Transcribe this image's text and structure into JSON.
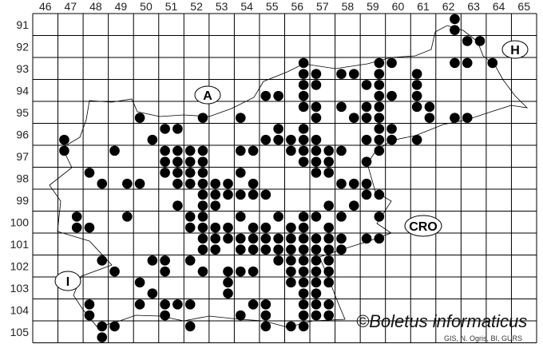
{
  "map": {
    "columns": [
      46,
      47,
      48,
      49,
      50,
      51,
      52,
      53,
      54,
      55,
      56,
      57,
      58,
      59,
      60,
      61,
      62,
      63,
      64,
      65
    ],
    "rows": [
      91,
      92,
      93,
      94,
      95,
      96,
      97,
      98,
      99,
      100,
      101,
      102,
      103,
      104,
      105
    ],
    "dot_color": "#000000",
    "labels": {
      "austria": "A",
      "hungary": "H",
      "croatia": "CRO",
      "italy": "I"
    },
    "dots_by_row": [
      [
        91.25,
        [
          62.75
        ]
      ],
      [
        91.75,
        [
          62.75
        ]
      ],
      [
        92.25,
        [
          63.25,
          63.75
        ]
      ],
      [
        93.25,
        [
          56.75,
          59.75,
          60.25,
          62.75,
          63.25,
          64.25
        ]
      ],
      [
        93.75,
        [
          56.75,
          57.25,
          58.25,
          58.75,
          59.75,
          61.25
        ]
      ],
      [
        94.25,
        [
          56.75,
          57.25,
          59.25,
          59.75,
          61.25
        ]
      ],
      [
        94.75,
        [
          55.25,
          55.75,
          56.75,
          59.75,
          60.25,
          61.25
        ]
      ],
      [
        95.25,
        [
          56.75,
          57.25,
          58.25,
          59.25,
          59.75,
          61.25,
          61.75
        ]
      ],
      [
        95.75,
        [
          50.25,
          52.75,
          54.25,
          57.25,
          58.75,
          59.25,
          59.75,
          61.75,
          62.75,
          63.25
        ]
      ],
      [
        96.25,
        [
          51.25,
          51.75,
          55.75,
          56.75,
          59.75,
          60.25
        ]
      ],
      [
        96.75,
        [
          47.25,
          50.75,
          55.25,
          55.75,
          56.25,
          56.75,
          57.25,
          59.25,
          59.75,
          60.25,
          61.25
        ]
      ],
      [
        97.25,
        [
          47.25,
          49.25,
          51.25,
          51.75,
          52.25,
          52.75,
          54.25,
          54.75,
          56.25,
          56.75,
          57.25,
          57.75,
          58.25,
          59.75
        ]
      ],
      [
        97.75,
        [
          51.25,
          51.75,
          52.25,
          52.75,
          56.75,
          57.25,
          57.75,
          59.25
        ]
      ],
      [
        98.25,
        [
          48.25,
          51.25,
          51.75,
          52.25,
          52.75,
          54.25,
          57.25,
          57.75
        ]
      ],
      [
        98.75,
        [
          48.75,
          49.75,
          50.25,
          51.75,
          52.25,
          52.75,
          53.25,
          53.75,
          54.75,
          58.25,
          58.75,
          59.25
        ]
      ],
      [
        99.25,
        [
          52.75,
          53.25,
          53.75,
          54.25,
          54.75,
          55.25,
          59.25,
          59.75
        ]
      ],
      [
        99.75,
        [
          51.75,
          52.75,
          53.25,
          57.75,
          58.75
        ]
      ],
      [
        100.25,
        [
          47.75,
          49.75,
          52.25,
          52.75,
          54.25,
          55.75,
          56.75,
          57.25,
          58.25,
          59.75
        ]
      ],
      [
        100.75,
        [
          47.75,
          48.25,
          52.25,
          52.75,
          53.25,
          53.75,
          54.75,
          55.25,
          56.25,
          56.75,
          57.75
        ]
      ],
      [
        101.25,
        [
          52.75,
          53.25,
          53.75,
          54.25,
          54.75,
          55.25,
          55.75,
          56.25,
          56.75,
          57.25,
          57.75,
          58.25,
          59.25,
          59.75
        ]
      ],
      [
        101.75,
        [
          52.75,
          53.25,
          54.25,
          54.75,
          55.25,
          55.75,
          56.25,
          56.75,
          57.25,
          57.75,
          58.25
        ]
      ],
      [
        102.25,
        [
          48.75,
          50.75,
          51.25,
          52.25,
          55.75,
          56.25,
          56.75,
          57.25,
          57.75
        ]
      ],
      [
        102.75,
        [
          49.25,
          51.25,
          52.75,
          53.75,
          54.25,
          54.75,
          56.25,
          56.75,
          57.25,
          57.75
        ]
      ],
      [
        103.25,
        [
          50.25,
          53.75,
          56.25,
          56.75,
          57.25,
          57.75
        ]
      ],
      [
        103.75,
        [
          50.75,
          53.75,
          56.75,
          57.25
        ]
      ],
      [
        104.25,
        [
          48.25,
          50.25,
          51.25,
          51.75,
          52.25,
          54.75,
          55.25,
          56.75,
          57.25,
          57.75
        ]
      ],
      [
        104.75,
        [
          48.25,
          51.25,
          54.25,
          55.25,
          56.75,
          57.25,
          57.75
        ]
      ],
      [
        105.25,
        [
          48.75,
          49.25,
          52.25,
          55.25,
          56.25,
          56.75
        ]
      ],
      [
        105.75,
        [
          48.75
        ]
      ]
    ]
  },
  "copyright": "©Boletus informaticus",
  "credit": "GIS, N. Ogris, BI, GURS"
}
